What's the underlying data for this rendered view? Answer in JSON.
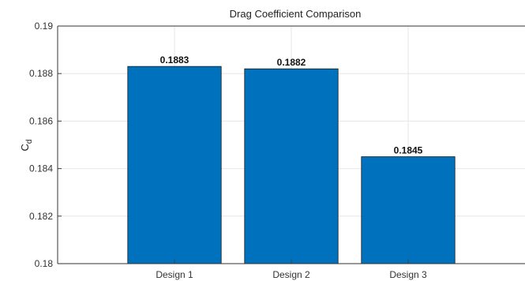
{
  "chart_data": {
    "type": "bar",
    "title": "Drag Coefficient Comparison",
    "xlabel": "",
    "ylabel": "C",
    "ylabel_subscript": "d",
    "categories": [
      "Design 1",
      "Design 2",
      "Design 3"
    ],
    "values": [
      0.1883,
      0.1882,
      0.1845
    ],
    "data_labels": [
      "0.1883",
      "0.1882",
      "0.1845"
    ],
    "ylim": [
      0.18,
      0.19
    ],
    "yticks": [
      0.18,
      0.182,
      0.184,
      0.186,
      0.188,
      0.19
    ],
    "ytick_labels": [
      "0.18",
      "0.182",
      "0.184",
      "0.186",
      "0.188",
      "0.19"
    ],
    "grid": true,
    "bar_color": "#0072BD"
  }
}
